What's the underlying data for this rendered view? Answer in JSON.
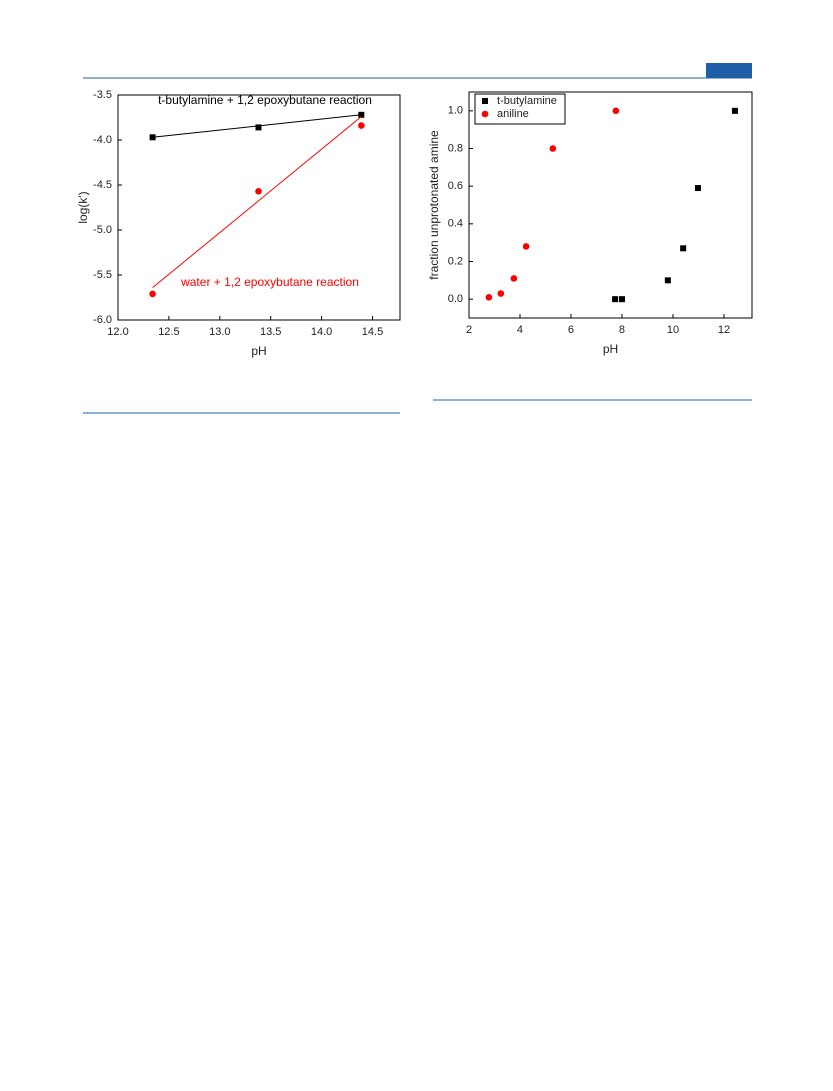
{
  "chart_data": [
    {
      "type": "scatter",
      "x_label": "pH",
      "y_label": "log(k')",
      "xlim": [
        12.0,
        14.77
      ],
      "ylim": [
        -6.0,
        -3.5
      ],
      "xticks": [
        {
          "value": 12,
          "label": "12.0"
        },
        12.5,
        {
          "value": 13,
          "label": "13.0"
        },
        13.5,
        {
          "value": 14,
          "label": "14.0"
        },
        14.5
      ],
      "yticks": [
        {
          "value": -6,
          "label": "-6.0"
        },
        -5.5,
        {
          "value": -5,
          "label": "-5.0"
        },
        -4.5,
        {
          "value": -4,
          "label": "-4.0"
        },
        -3.5
      ],
      "series": [
        {
          "name": "t-butylamine + 1,2 epoxybutane reaction",
          "color": "#000000",
          "marker": "square",
          "x": [
            12.34,
            13.38,
            14.39
          ],
          "values": [
            -3.97,
            -3.86,
            -3.72
          ],
          "fit": [
            -3.97,
            -3.72
          ]
        },
        {
          "name": "water + 1,2 epoxybutane reaction",
          "color": "#ff0000",
          "marker": "circle",
          "x": [
            12.34,
            13.38,
            14.39
          ],
          "values": [
            -5.71,
            -4.57,
            -3.84
          ],
          "fit": [
            -5.64,
            -3.74
          ]
        }
      ]
    },
    {
      "type": "scatter",
      "x_label": "pH",
      "y_label": "fraction unprotonated amine",
      "xlim": [
        2,
        13.1
      ],
      "ylim": [
        -0.1,
        1.1
      ],
      "xticks": [
        2,
        4,
        6,
        8,
        10,
        12
      ],
      "yticks": [
        {
          "value": 0,
          "label": "0.0"
        },
        0.2,
        0.4,
        0.6,
        0.8,
        {
          "value": 1,
          "label": "1.0"
        }
      ],
      "legend": "upper left",
      "series": [
        {
          "name": "t-butylamine",
          "color": "#000000",
          "marker": "square",
          "x": [
            7.73,
            8.0,
            9.8,
            10.4,
            10.98,
            12.43
          ],
          "values": [
            0,
            0,
            0.1,
            0.27,
            0.59,
            1.0
          ]
        },
        {
          "name": "aniline",
          "color": "#ff0000",
          "marker": "circle",
          "x": [
            2.78,
            3.25,
            3.76,
            4.24,
            5.29,
            7.76
          ],
          "values": [
            0.01,
            0.03,
            0.11,
            0.28,
            0.8,
            1.0
          ]
        }
      ]
    }
  ]
}
